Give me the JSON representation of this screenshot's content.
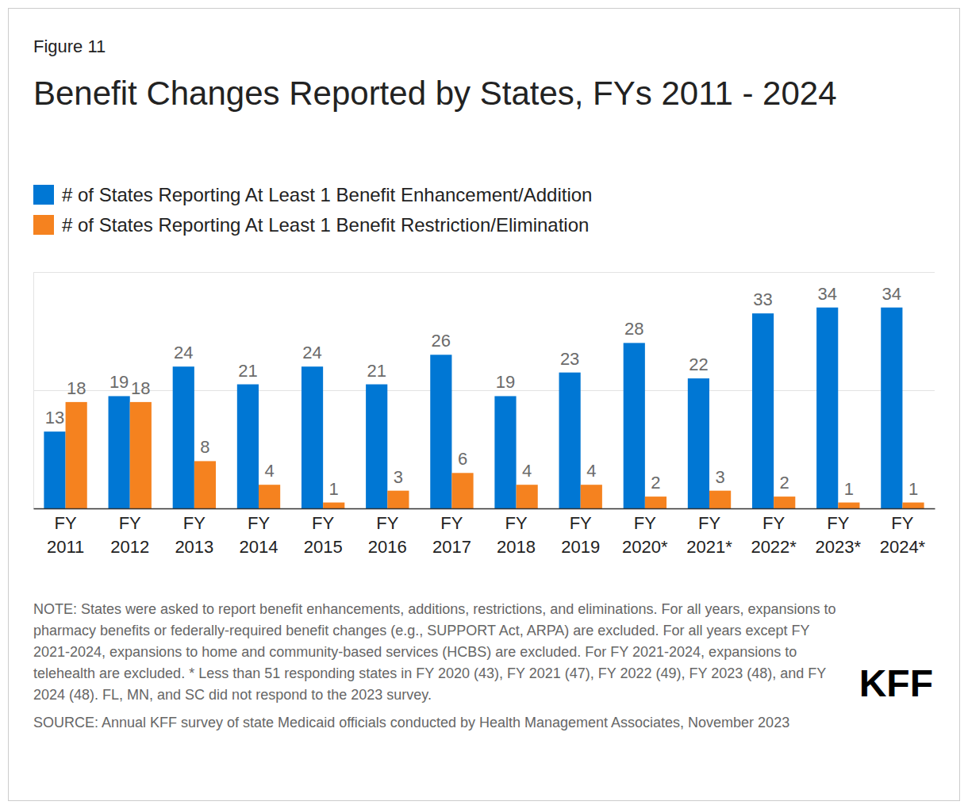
{
  "chart_data": {
    "type": "bar",
    "figure_number": "Figure 11",
    "title": "Benefit Changes Reported by States, FYs 2011 - 2024",
    "categories": [
      "FY 2011",
      "FY 2012",
      "FY 2013",
      "FY 2014",
      "FY 2015",
      "FY 2016",
      "FY 2017",
      "FY 2018",
      "FY 2019",
      "FY 2020*",
      "FY 2021*",
      "FY 2022*",
      "FY 2023*",
      "FY 2024*"
    ],
    "series": [
      {
        "name": "# of States Reporting At Least 1 Benefit Enhancement/Addition",
        "color": "#0077d4",
        "values": [
          13,
          19,
          24,
          21,
          24,
          21,
          26,
          19,
          23,
          28,
          22,
          33,
          34,
          34
        ]
      },
      {
        "name": "# of States Reporting At Least 1 Benefit Restriction/Elimination",
        "color": "#f5821f",
        "values": [
          18,
          18,
          8,
          4,
          1,
          3,
          6,
          4,
          4,
          2,
          3,
          2,
          1,
          1
        ]
      }
    ],
    "ylim": [
      0,
      40
    ],
    "yticks": [
      0,
      20,
      40
    ],
    "grid": true,
    "legend": "top",
    "data_labels": true,
    "tick_labels": "x",
    "note": "NOTE: States were asked to report benefit enhancements, additions, restrictions, and eliminations. For all years, expansions to pharmacy benefits or federally-required benefit changes (e.g., SUPPORT Act, ARPA) are excluded. For all years except FY 2021-2024, expansions to home and community-based services (HCBS) are excluded. For FY 2021-2024, expansions to telehealth are excluded. * Less than 51 responding states in FY 2020 (43), FY 2021 (47), FY 2022 (49), FY 2023 (48), and FY 2024 (48). FL, MN, and SC did not respond to the 2023 survey.",
    "source": "SOURCE: Annual KFF survey of state Medicaid officials conducted by Health Management Associates, November 2023",
    "logo": "KFF"
  }
}
